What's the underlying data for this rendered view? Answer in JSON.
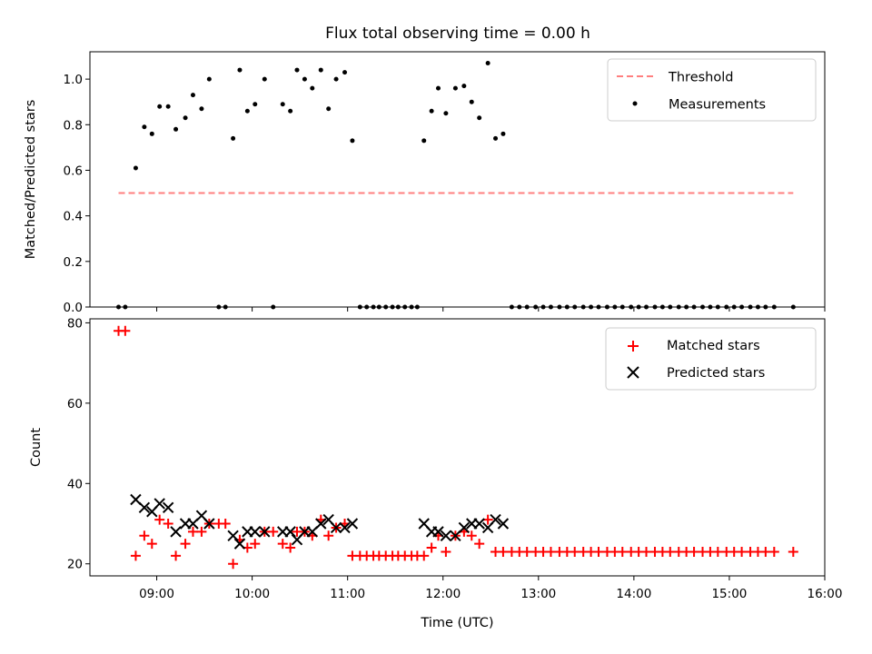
{
  "chart_data": [
    {
      "type": "scatter",
      "title": "Flux total observing time = 0.00 h",
      "xlabel": "",
      "ylabel": "Matched/Predicted stars",
      "xlim": [
        8.3,
        16.0
      ],
      "ylim": [
        0.0,
        1.12
      ],
      "yticks": [
        0.0,
        0.2,
        0.4,
        0.6,
        0.8,
        1.0
      ],
      "ytick_labels": [
        "0.0",
        "0.2",
        "0.4",
        "0.6",
        "0.8",
        "1.0"
      ],
      "legend_position": "top-right",
      "series": [
        {
          "name": "Threshold",
          "kind": "dashed-line",
          "color": "#ff7f7f",
          "x": [
            8.6,
            15.67
          ],
          "y": [
            0.5,
            0.5
          ]
        },
        {
          "name": "Measurements",
          "kind": "points",
          "color": "#000000",
          "x": [
            8.6,
            8.67,
            8.78,
            8.87,
            8.95,
            9.03,
            9.12,
            9.2,
            9.3,
            9.38,
            9.47,
            9.55,
            9.65,
            9.72,
            9.8,
            9.87,
            9.95,
            10.03,
            10.13,
            10.22,
            10.32,
            10.4,
            10.47,
            10.55,
            10.63,
            10.72,
            10.8,
            10.88,
            10.97,
            11.05,
            11.13,
            11.2,
            11.27,
            11.33,
            11.4,
            11.47,
            11.53,
            11.6,
            11.67,
            11.73,
            11.8,
            11.88,
            11.95,
            12.03,
            12.13,
            12.22,
            12.3,
            12.38,
            12.47,
            12.55,
            12.63,
            12.72,
            12.8,
            12.88,
            12.97,
            13.05,
            13.13,
            13.22,
            13.3,
            13.38,
            13.47,
            13.55,
            13.63,
            13.72,
            13.8,
            13.88,
            13.97,
            14.05,
            14.13,
            14.22,
            14.3,
            14.38,
            14.47,
            14.55,
            14.63,
            14.72,
            14.8,
            14.88,
            14.97,
            15.05,
            15.13,
            15.22,
            15.3,
            15.38,
            15.47,
            15.67
          ],
          "y": [
            0.0,
            0.0,
            0.61,
            0.79,
            0.76,
            0.88,
            0.88,
            0.78,
            0.83,
            0.93,
            0.87,
            1.0,
            0.0,
            0.0,
            0.74,
            1.04,
            0.86,
            0.89,
            1.0,
            0.0,
            0.89,
            0.86,
            1.04,
            1.0,
            0.96,
            1.04,
            0.87,
            1.0,
            1.03,
            0.73,
            0.0,
            0.0,
            0.0,
            0.0,
            0.0,
            0.0,
            0.0,
            0.0,
            0.0,
            0.0,
            0.73,
            0.86,
            0.96,
            0.85,
            0.96,
            0.97,
            0.9,
            0.83,
            1.07,
            0.74,
            0.76,
            0.0,
            0.0,
            0.0,
            0.0,
            0.0,
            0.0,
            0.0,
            0.0,
            0.0,
            0.0,
            0.0,
            0.0,
            0.0,
            0.0,
            0.0,
            0.0,
            0.0,
            0.0,
            0.0,
            0.0,
            0.0,
            0.0,
            0.0,
            0.0,
            0.0,
            0.0,
            0.0,
            0.0,
            0.0,
            0.0,
            0.0,
            0.0,
            0.0,
            0.0,
            0.0
          ]
        }
      ]
    },
    {
      "type": "scatter",
      "title": "",
      "xlabel": "Time (UTC)",
      "ylabel": "Count",
      "xlim": [
        8.3,
        16.0
      ],
      "ylim": [
        17,
        81
      ],
      "yticks": [
        20,
        40,
        60,
        80
      ],
      "ytick_labels": [
        "20",
        "40",
        "60",
        "80"
      ],
      "xticks": [
        9,
        10,
        11,
        12,
        13,
        14,
        15,
        16
      ],
      "xtick_labels": [
        "09:00",
        "10:00",
        "11:00",
        "12:00",
        "13:00",
        "14:00",
        "15:00",
        "16:00"
      ],
      "legend_position": "top-right",
      "series": [
        {
          "name": "Matched stars",
          "kind": "plus",
          "color": "#ff0000",
          "x": [
            8.6,
            8.67,
            8.78,
            8.87,
            8.95,
            9.03,
            9.12,
            9.2,
            9.3,
            9.38,
            9.47,
            9.55,
            9.65,
            9.72,
            9.8,
            9.87,
            9.95,
            10.03,
            10.13,
            10.22,
            10.32,
            10.4,
            10.47,
            10.55,
            10.63,
            10.72,
            10.8,
            10.88,
            10.97,
            11.05,
            11.13,
            11.2,
            11.27,
            11.33,
            11.4,
            11.47,
            11.53,
            11.6,
            11.67,
            11.73,
            11.8,
            11.88,
            11.95,
            12.03,
            12.13,
            12.22,
            12.3,
            12.38,
            12.47,
            12.55,
            12.63,
            12.72,
            12.8,
            12.88,
            12.97,
            13.05,
            13.13,
            13.22,
            13.3,
            13.38,
            13.47,
            13.55,
            13.63,
            13.72,
            13.8,
            13.88,
            13.97,
            14.05,
            14.13,
            14.22,
            14.3,
            14.38,
            14.47,
            14.55,
            14.63,
            14.72,
            14.8,
            14.88,
            14.97,
            15.05,
            15.13,
            15.22,
            15.3,
            15.38,
            15.47,
            15.67
          ],
          "y": [
            78,
            78,
            22,
            27,
            25,
            31,
            30,
            22,
            25,
            28,
            28,
            30,
            30,
            30,
            20,
            26,
            24,
            25,
            28,
            28,
            25,
            24,
            28,
            28,
            27,
            31,
            27,
            29,
            30,
            22,
            22,
            22,
            22,
            22,
            22,
            22,
            22,
            22,
            22,
            22,
            22,
            24,
            27,
            23,
            27,
            28,
            27,
            25,
            31,
            23,
            23,
            23,
            23,
            23,
            23,
            23,
            23,
            23,
            23,
            23,
            23,
            23,
            23,
            23,
            23,
            23,
            23,
            23,
            23,
            23,
            23,
            23,
            23,
            23,
            23,
            23,
            23,
            23,
            23,
            23,
            23,
            23,
            23,
            23,
            23,
            23
          ]
        },
        {
          "name": "Predicted stars",
          "kind": "cross",
          "color": "#000000",
          "x": [
            8.78,
            8.87,
            8.95,
            9.03,
            9.12,
            9.2,
            9.3,
            9.38,
            9.47,
            9.55,
            9.8,
            9.87,
            9.95,
            10.03,
            10.13,
            10.32,
            10.4,
            10.47,
            10.55,
            10.63,
            10.72,
            10.8,
            10.88,
            10.97,
            11.05,
            11.8,
            11.88,
            11.95,
            12.03,
            12.13,
            12.22,
            12.3,
            12.38,
            12.47,
            12.55,
            12.63
          ],
          "y": [
            36,
            34,
            33,
            35,
            34,
            28,
            30,
            30,
            32,
            30,
            27,
            25,
            28,
            28,
            28,
            28,
            28,
            26,
            28,
            28,
            30,
            31,
            29,
            29,
            30,
            30,
            28,
            28,
            27,
            27,
            29,
            30,
            30,
            29,
            31,
            30
          ]
        }
      ]
    }
  ]
}
